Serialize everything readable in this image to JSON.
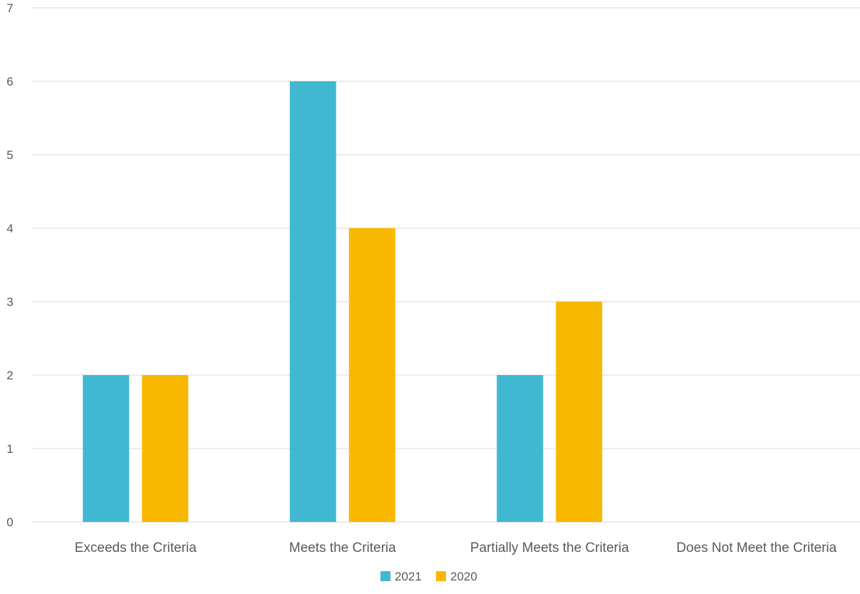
{
  "chart_data": {
    "type": "bar",
    "title": "",
    "xlabel": "",
    "ylabel": "",
    "categories": [
      "Exceeds the Criteria",
      "Meets the Criteria",
      "Partially Meets the Criteria",
      "Does Not Meet the Criteria"
    ],
    "series": [
      {
        "name": "2021",
        "color": "#41B8D2",
        "values": [
          2,
          6,
          2,
          0
        ]
      },
      {
        "name": "2020",
        "color": "#F8B800",
        "values": [
          2,
          4,
          3,
          0
        ]
      }
    ],
    "ylim": [
      0,
      7
    ],
    "yticks": [
      "0",
      "1",
      "2",
      "3",
      "4",
      "5",
      "6",
      "7"
    ],
    "grid": true,
    "legend_position": "bottom"
  }
}
